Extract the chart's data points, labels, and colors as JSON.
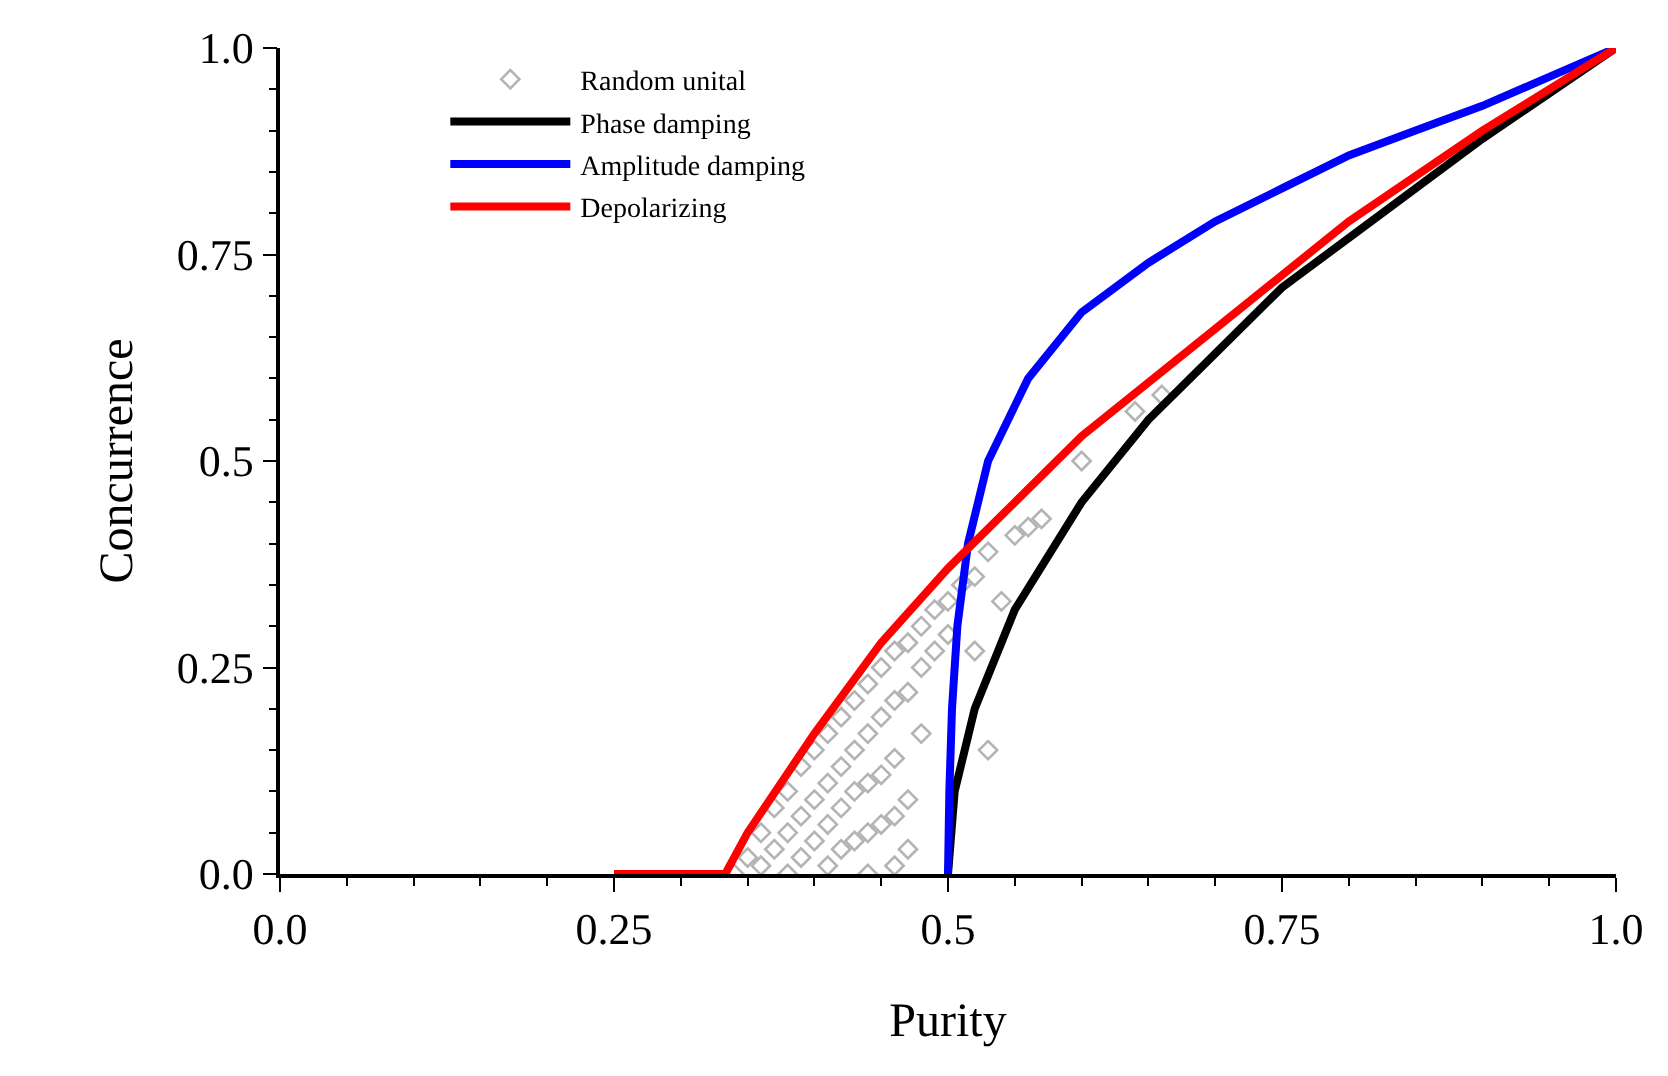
{
  "chart_data": {
    "type": "line",
    "xlabel": "Purity",
    "ylabel": "Concurrence",
    "xlim": [
      0,
      1
    ],
    "ylim": [
      0,
      1
    ],
    "xticks": [
      {
        "value": 0,
        "label": "0.0"
      },
      0.25,
      0.5,
      0.75,
      {
        "value": 1,
        "label": "1.0"
      }
    ],
    "yticks": [
      {
        "value": 0,
        "label": "0.0"
      },
      0.25,
      0.5,
      0.75,
      {
        "value": 1,
        "label": "1.0"
      }
    ],
    "legend": "top left",
    "series": [
      {
        "name": "Random unital",
        "type": "scatter",
        "marker": "diamond",
        "color": "#b4b4b4",
        "x": [
          0.34,
          0.35,
          0.36,
          0.36,
          0.37,
          0.37,
          0.38,
          0.38,
          0.38,
          0.39,
          0.39,
          0.39,
          0.4,
          0.4,
          0.4,
          0.41,
          0.41,
          0.41,
          0.41,
          0.42,
          0.42,
          0.42,
          0.42,
          0.43,
          0.43,
          0.43,
          0.43,
          0.44,
          0.44,
          0.44,
          0.44,
          0.44,
          0.45,
          0.45,
          0.45,
          0.45,
          0.46,
          0.46,
          0.46,
          0.46,
          0.46,
          0.47,
          0.47,
          0.47,
          0.47,
          0.48,
          0.48,
          0.48,
          0.49,
          0.49,
          0.5,
          0.5,
          0.51,
          0.52,
          0.52,
          0.53,
          0.54,
          0.55,
          0.56,
          0.57,
          0.53,
          0.6,
          0.64,
          0.66
        ],
        "values": [
          0,
          0.02,
          0.05,
          0.01,
          0.08,
          0.03,
          0.1,
          0.05,
          0,
          0.13,
          0.07,
          0.02,
          0.15,
          0.09,
          0.04,
          0.17,
          0.11,
          0.06,
          0.01,
          0.19,
          0.13,
          0.08,
          0.03,
          0.21,
          0.15,
          0.1,
          0.04,
          0.23,
          0.17,
          0.11,
          0.05,
          0,
          0.25,
          0.19,
          0.12,
          0.06,
          0.27,
          0.21,
          0.14,
          0.07,
          0.01,
          0.28,
          0.22,
          0.09,
          0.03,
          0.3,
          0.25,
          0.17,
          0.32,
          0.27,
          0.33,
          0.29,
          0.35,
          0.36,
          0.27,
          0.39,
          0.33,
          0.41,
          0.42,
          0.43,
          0.15,
          0.5,
          0.56,
          0.58
        ]
      },
      {
        "name": "Phase damping",
        "color": "#000000",
        "x": [
          0.5,
          0.505,
          0.52,
          0.55,
          0.6,
          0.65,
          0.7,
          0.75,
          0.8,
          0.9,
          1
        ],
        "values": [
          0,
          0.1,
          0.2,
          0.32,
          0.45,
          0.55,
          0.63,
          0.71,
          0.77,
          0.89,
          1
        ]
      },
      {
        "name": "Amplitude damping",
        "color": "#0000ff",
        "x": [
          0.5,
          0.501,
          0.503,
          0.507,
          0.515,
          0.53,
          0.56,
          0.6,
          0.65,
          0.7,
          0.75,
          0.8,
          0.85,
          0.9,
          0.95,
          1
        ],
        "values": [
          0,
          0.1,
          0.2,
          0.3,
          0.4,
          0.5,
          0.6,
          0.68,
          0.74,
          0.79,
          0.83,
          0.87,
          0.9,
          0.93,
          0.965,
          1
        ]
      },
      {
        "name": "Depolarizing",
        "color": "#ff0000",
        "x": [
          0.25,
          0.3333,
          0.35,
          0.4,
          0.45,
          0.5,
          0.55,
          0.6,
          0.7,
          0.8,
          0.9,
          1
        ],
        "values": [
          0,
          0,
          0.05,
          0.17,
          0.28,
          0.37,
          0.45,
          0.53,
          0.66,
          0.79,
          0.9,
          1
        ]
      }
    ]
  }
}
